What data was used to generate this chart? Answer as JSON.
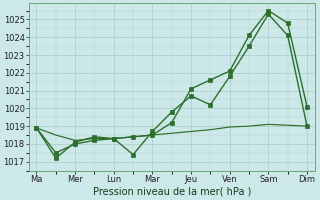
{
  "background_color": "#cce8e8",
  "grid_color": "#aacccc",
  "line_color": "#2d6e2d",
  "xlabel": "Pression niveau de la mer( hPa )",
  "ylim": [
    1016.5,
    1025.9
  ],
  "yticks": [
    1017,
    1018,
    1019,
    1020,
    1021,
    1022,
    1023,
    1024,
    1025
  ],
  "x_labels": [
    "Ma",
    "Mer",
    "Lun",
    "Mar",
    "Jeu",
    "Ven",
    "Sam",
    "Dim"
  ],
  "x_positions": [
    0,
    1,
    2,
    3,
    4,
    5,
    6,
    7
  ],
  "xlim": [
    -0.2,
    7.2
  ],
  "series1": {
    "x": [
      0,
      0.5,
      1,
      1.5,
      2,
      2.5,
      3,
      3.5,
      4,
      4.5,
      5,
      5.5,
      6,
      6.5,
      7
    ],
    "y": [
      1018.9,
      1017.5,
      1018.0,
      1018.2,
      1018.3,
      1017.4,
      1018.7,
      1019.8,
      1020.7,
      1020.2,
      1021.8,
      1023.5,
      1025.3,
      1024.1,
      1019.0
    ]
  },
  "series2": {
    "x": [
      0,
      0.5,
      1,
      1.5,
      2,
      2.5,
      3,
      3.5,
      4,
      4.5,
      5,
      5.5,
      6,
      6.5,
      7
    ],
    "y": [
      1018.9,
      1017.2,
      1018.1,
      1018.4,
      1018.3,
      1018.4,
      1018.5,
      1019.2,
      1021.1,
      1021.6,
      1022.1,
      1024.1,
      1025.5,
      1024.8,
      1020.1
    ]
  },
  "series3": {
    "x": [
      0,
      0.5,
      1,
      1.5,
      2,
      2.5,
      3,
      3.5,
      4,
      4.5,
      5,
      5.5,
      6,
      6.5,
      7
    ],
    "y": [
      1018.9,
      1018.5,
      1018.2,
      1018.3,
      1018.3,
      1018.4,
      1018.5,
      1018.6,
      1018.7,
      1018.8,
      1018.95,
      1019.0,
      1019.1,
      1019.05,
      1019.0
    ]
  },
  "tick_fontsize": 6,
  "xlabel_fontsize": 7,
  "marker": "s",
  "markersize": 2.8,
  "linewidth": 1.0,
  "linewidth_flat": 0.85
}
